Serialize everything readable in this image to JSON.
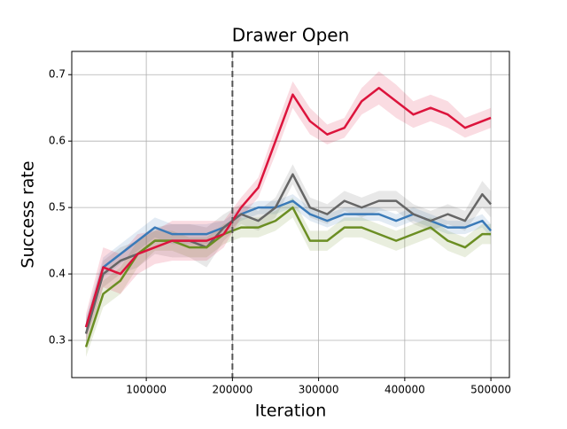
{
  "chart_data": {
    "type": "line",
    "title": "Drawer Open",
    "xlabel": "Iteration",
    "ylabel": "Success rate",
    "x": [
      30000,
      50000,
      70000,
      90000,
      110000,
      130000,
      150000,
      170000,
      190000,
      210000,
      230000,
      250000,
      270000,
      290000,
      310000,
      330000,
      350000,
      370000,
      390000,
      410000,
      430000,
      450000,
      470000,
      490000,
      500000
    ],
    "series": [
      {
        "color": "#3a7ab8",
        "values": [
          0.32,
          0.41,
          0.43,
          0.45,
          0.47,
          0.46,
          0.46,
          0.46,
          0.47,
          0.49,
          0.5,
          0.5,
          0.51,
          0.49,
          0.48,
          0.49,
          0.49,
          0.49,
          0.48,
          0.49,
          0.48,
          0.47,
          0.47,
          0.48,
          0.465
        ],
        "errors": [
          0.015,
          0.015,
          0.015,
          0.015,
          0.015,
          0.015,
          0.015,
          0.015,
          0.01,
          0.01,
          0.01,
          0.01,
          0.01,
          0.01,
          0.01,
          0.01,
          0.01,
          0.01,
          0.01,
          0.01,
          0.01,
          0.01,
          0.01,
          0.01,
          0.01
        ]
      },
      {
        "color": "#666666",
        "values": [
          0.31,
          0.4,
          0.42,
          0.43,
          0.45,
          0.45,
          0.45,
          0.44,
          0.47,
          0.49,
          0.48,
          0.5,
          0.55,
          0.5,
          0.49,
          0.51,
          0.5,
          0.51,
          0.51,
          0.49,
          0.48,
          0.49,
          0.48,
          0.52,
          0.505
        ],
        "errors": [
          0.02,
          0.02,
          0.02,
          0.02,
          0.02,
          0.025,
          0.025,
          0.03,
          0.02,
          0.015,
          0.015,
          0.015,
          0.015,
          0.015,
          0.015,
          0.015,
          0.015,
          0.015,
          0.015,
          0.015,
          0.015,
          0.015,
          0.015,
          0.02,
          0.02
        ]
      },
      {
        "color": "#6b8e23",
        "values": [
          0.29,
          0.37,
          0.39,
          0.43,
          0.45,
          0.45,
          0.44,
          0.44,
          0.46,
          0.47,
          0.47,
          0.48,
          0.5,
          0.45,
          0.45,
          0.47,
          0.47,
          0.46,
          0.45,
          0.46,
          0.47,
          0.45,
          0.44,
          0.46,
          0.46
        ],
        "errors": [
          0.015,
          0.02,
          0.02,
          0.02,
          0.015,
          0.015,
          0.015,
          0.015,
          0.015,
          0.015,
          0.015,
          0.015,
          0.015,
          0.015,
          0.015,
          0.015,
          0.015,
          0.015,
          0.015,
          0.015,
          0.015,
          0.015,
          0.015,
          0.015,
          0.015
        ]
      },
      {
        "color": "#dc143c",
        "values": [
          0.32,
          0.41,
          0.4,
          0.43,
          0.44,
          0.45,
          0.45,
          0.45,
          0.46,
          0.5,
          0.53,
          0.6,
          0.67,
          0.63,
          0.61,
          0.62,
          0.66,
          0.68,
          0.66,
          0.64,
          0.65,
          0.64,
          0.62,
          0.63,
          0.635
        ],
        "errors": [
          0.02,
          0.03,
          0.03,
          0.03,
          0.025,
          0.03,
          0.03,
          0.03,
          0.02,
          0.015,
          0.015,
          0.02,
          0.02,
          0.02,
          0.015,
          0.015,
          0.02,
          0.025,
          0.025,
          0.02,
          0.02,
          0.02,
          0.015,
          0.015,
          0.015
        ]
      }
    ],
    "vline": 200000,
    "xlim": [
      13500,
      521500
    ],
    "xticks": [
      100000,
      200000,
      300000,
      400000,
      500000
    ],
    "ylim": [
      0.244,
      0.735
    ],
    "yticks": [
      0.3,
      0.4,
      0.5,
      0.6,
      0.7
    ],
    "grid": true
  }
}
